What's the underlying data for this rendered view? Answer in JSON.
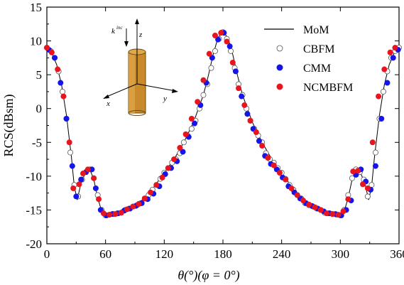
{
  "chart_data": {
    "type": "scatter",
    "title": "",
    "xlabel": "θ(°)(φ = 0°)",
    "ylabel": "RCS(dBsm)",
    "xlim": [
      0,
      360
    ],
    "ylim": [
      -20,
      15
    ],
    "xticks": [
      0,
      60,
      120,
      180,
      240,
      300,
      360
    ],
    "yticks": [
      -20,
      -15,
      -10,
      -5,
      0,
      5,
      10,
      15
    ],
    "legend_position": "top-right",
    "series": [
      {
        "name": "MoM",
        "style": "line",
        "color": "#000000",
        "x": [
          0,
          5,
          10,
          15,
          20,
          25,
          28,
          31,
          35,
          40,
          44,
          48,
          52,
          56,
          60,
          65,
          70,
          75,
          80,
          90,
          100,
          110,
          120,
          130,
          140,
          150,
          160,
          165,
          170,
          175,
          180,
          185,
          190,
          195,
          200,
          210,
          220,
          230,
          240,
          250,
          260,
          270,
          280,
          285,
          290,
          295,
          300,
          304,
          308,
          312,
          316,
          320,
          325,
          329,
          332,
          335,
          340,
          345,
          350,
          355,
          360
        ],
        "y": [
          9,
          8.2,
          6.5,
          3.5,
          -1,
          -7,
          -11.5,
          -13.5,
          -11,
          -9.3,
          -9,
          -10.5,
          -13.2,
          -15.2,
          -15.8,
          -15.6,
          -15.5,
          -15.4,
          -15,
          -14.2,
          -13.3,
          -11.5,
          -9.5,
          -7.5,
          -5,
          -2,
          2,
          4.8,
          8,
          10.5,
          11.3,
          10.5,
          8,
          4.8,
          2,
          -2,
          -5,
          -7.5,
          -9.5,
          -11.5,
          -13.3,
          -14.2,
          -15,
          -15.4,
          -15.5,
          -15.6,
          -15.8,
          -15.2,
          -13.2,
          -10.5,
          -9,
          -9.3,
          -11,
          -13.5,
          -11.5,
          -7,
          -1,
          3.5,
          6.5,
          8.2,
          9
        ]
      },
      {
        "name": "CBFM",
        "style": "open-circle",
        "color": "#555555",
        "x": [
          0,
          4,
          8,
          12,
          16,
          20,
          24,
          28,
          32,
          36,
          40,
          44,
          48,
          52,
          56,
          60,
          64,
          68,
          72,
          76,
          80,
          84,
          88,
          92,
          96,
          100,
          104,
          108,
          112,
          116,
          120,
          124,
          128,
          132,
          136,
          140,
          144,
          148,
          152,
          156,
          160,
          164,
          168,
          172,
          176,
          180,
          184,
          188,
          192,
          196,
          200,
          204,
          208,
          212,
          216,
          220,
          224,
          228,
          232,
          236,
          240,
          244,
          248,
          252,
          256,
          260,
          264,
          268,
          272,
          276,
          280,
          284,
          288,
          292,
          296,
          300,
          304,
          308,
          312,
          316,
          320,
          324,
          328,
          332,
          336,
          340,
          344,
          348,
          352,
          356,
          360
        ],
        "y": [
          9,
          8.5,
          7.5,
          5.5,
          2.5,
          -1.5,
          -6.5,
          -11.3,
          -13,
          -10.5,
          -9.4,
          -9,
          -10.3,
          -12.8,
          -15,
          -15.8,
          -15.7,
          -15.6,
          -15.5,
          -15.4,
          -15,
          -14.8,
          -14.5,
          -14.3,
          -14,
          -13.3,
          -12.8,
          -12,
          -11.3,
          -10.4,
          -9.5,
          -8.8,
          -8,
          -7.5,
          -6.6,
          -5,
          -4,
          -3,
          -1.8,
          0,
          2,
          3.6,
          6,
          8.5,
          10.3,
          11.3,
          10.3,
          8.5,
          6,
          3.6,
          2,
          0,
          -1.8,
          -3,
          -4,
          -5,
          -6.6,
          -7.5,
          -8,
          -8.8,
          -9.5,
          -10.4,
          -11.3,
          -12,
          -12.8,
          -13.3,
          -14,
          -14.3,
          -14.5,
          -14.8,
          -15,
          -15.4,
          -15.5,
          -15.6,
          -15.7,
          -15.8,
          -15,
          -12.8,
          -10.3,
          -9,
          -9.4,
          -10.5,
          -13,
          -11.3,
          -6.5,
          -1.5,
          2.5,
          5.5,
          7.5,
          8.5,
          9
        ]
      },
      {
        "name": "CMM",
        "style": "filled-circle",
        "color": "#1515e8",
        "x": [
          2,
          8,
          14,
          20,
          26,
          30,
          35,
          40,
          46,
          50,
          55,
          61,
          67,
          73,
          79,
          85,
          91,
          97,
          103,
          109,
          115,
          121,
          127,
          133,
          139,
          145,
          151,
          157,
          163,
          169,
          175,
          181,
          187,
          193,
          199,
          205,
          211,
          217,
          223,
          229,
          235,
          241,
          247,
          253,
          259,
          265,
          271,
          277,
          283,
          289,
          295,
          301,
          306,
          311,
          316,
          321,
          326,
          331,
          336,
          342,
          348,
          354,
          359
        ],
        "y": [
          8.7,
          7.5,
          3.8,
          -1.5,
          -8.5,
          -13,
          -10.5,
          -9.4,
          -9,
          -11.8,
          -15,
          -15.8,
          -15.6,
          -15.5,
          -15.1,
          -14.8,
          -14.4,
          -14,
          -13.4,
          -12.6,
          -11.5,
          -9.7,
          -8.8,
          -7.8,
          -6.4,
          -4.2,
          -2.2,
          0.5,
          3.8,
          7.5,
          10.2,
          11.2,
          9.2,
          5.5,
          1.8,
          -0.8,
          -3,
          -4.8,
          -7,
          -8.2,
          -9,
          -10.2,
          -11.5,
          -12.4,
          -13.3,
          -14,
          -14.4,
          -14.8,
          -15.2,
          -15.5,
          -15.6,
          -15.8,
          -15,
          -13.6,
          -9.8,
          -9,
          -10.8,
          -12,
          -8.5,
          -1.5,
          3.8,
          7.5,
          8.7
        ]
      },
      {
        "name": "NCMBFM",
        "style": "filled-circle",
        "color": "#e8141e",
        "x": [
          0,
          5,
          11,
          17,
          23,
          27,
          33,
          37,
          42,
          48,
          53,
          58,
          64,
          70,
          76,
          82,
          88,
          94,
          100,
          106,
          112,
          118,
          124,
          130,
          136,
          142,
          148,
          154,
          160,
          166,
          172,
          178,
          184,
          190,
          196,
          202,
          208,
          214,
          220,
          226,
          232,
          238,
          244,
          250,
          256,
          262,
          268,
          274,
          280,
          286,
          292,
          298,
          303,
          308,
          313,
          318,
          323,
          328,
          333,
          339,
          345,
          351,
          356
        ],
        "y": [
          9,
          8.3,
          5.8,
          1.8,
          -5,
          -11.8,
          -11.2,
          -9.6,
          -9,
          -10.3,
          -13.4,
          -15.5,
          -15.7,
          -15.6,
          -15.4,
          -14.9,
          -14.5,
          -14.1,
          -13.3,
          -12.4,
          -11.3,
          -10.2,
          -8.8,
          -7.5,
          -5.8,
          -3.8,
          -1.5,
          1,
          4.2,
          8.1,
          10.8,
          11.2,
          9.9,
          6.8,
          3,
          0.5,
          -1.8,
          -3.5,
          -5.5,
          -7.3,
          -8.4,
          -9.5,
          -10.5,
          -11.8,
          -12.8,
          -13.6,
          -14.2,
          -14.6,
          -15,
          -15.5,
          -15.6,
          -15.7,
          -15.2,
          -13.4,
          -9.3,
          -9.2,
          -11.2,
          -11.8,
          -5,
          1.8,
          5.8,
          8.3,
          9
        ]
      }
    ]
  }
}
